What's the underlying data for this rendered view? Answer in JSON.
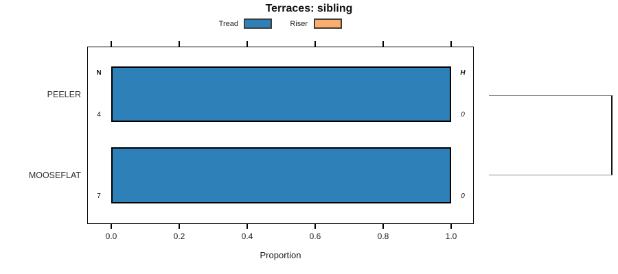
{
  "chart_data": {
    "type": "bar",
    "orientation": "horizontal",
    "title": "Terraces: sibling",
    "xlabel": "Proportion",
    "xlim": [
      0.0,
      1.0
    ],
    "xticks": [
      0.0,
      0.2,
      0.4,
      0.6,
      0.8,
      1.0
    ],
    "xtick_labels": [
      "0.0",
      "0.2",
      "0.4",
      "0.6",
      "0.8",
      "1.0"
    ],
    "categories": [
      "PEELER",
      "MOOSEFLAT"
    ],
    "series": [
      {
        "name": "Tread",
        "color": "#2e81b8",
        "values": [
          1.0,
          1.0
        ]
      },
      {
        "name": "Riser",
        "color": "#fbae6c",
        "values": [
          0.0,
          0.0
        ]
      }
    ],
    "row_annotations": {
      "left_header": "N",
      "right_header": "H",
      "left_values": [
        "4",
        "7"
      ],
      "right_values": [
        "0",
        "0"
      ]
    },
    "legend_position": "top-center",
    "grid": false,
    "axis_ticks": "top-and-bottom",
    "bar_border_color": "#000000",
    "linkage_bracket": {
      "side": "right",
      "connects": [
        "PEELER",
        "MOOSEFLAT"
      ],
      "color": "#555555"
    }
  }
}
